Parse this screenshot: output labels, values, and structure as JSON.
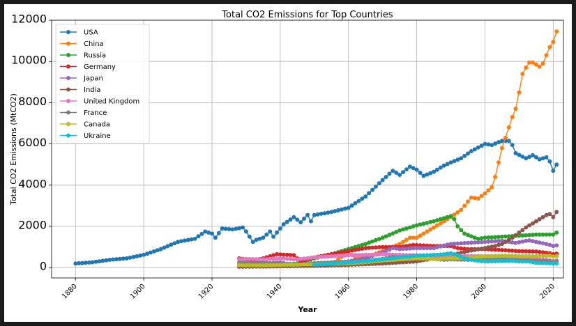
{
  "chart_data": {
    "type": "line",
    "title": "Total CO2 Emissions for Top Countries",
    "xlabel": "Year",
    "ylabel": "Total CO2 Emissions (MtCO2)",
    "xlim": [
      1873,
      2023
    ],
    "ylim": [
      -500,
      12000
    ],
    "xticks": [
      1880,
      1900,
      1920,
      1940,
      1960,
      1980,
      2000,
      2020
    ],
    "yticks": [
      0,
      2000,
      4000,
      6000,
      8000,
      10000,
      12000
    ],
    "grid": true,
    "legend_position": "top-left",
    "series": [
      {
        "name": "USA",
        "color": "#1f77b4",
        "points": [
          [
            1880,
            200
          ],
          [
            1885,
            260
          ],
          [
            1890,
            380
          ],
          [
            1895,
            450
          ],
          [
            1900,
            620
          ],
          [
            1905,
            900
          ],
          [
            1910,
            1250
          ],
          [
            1915,
            1400
          ],
          [
            1918,
            1750
          ],
          [
            1920,
            1650
          ],
          [
            1921,
            1450
          ],
          [
            1923,
            1900
          ],
          [
            1926,
            1850
          ],
          [
            1929,
            1950
          ],
          [
            1930,
            1750
          ],
          [
            1932,
            1250
          ],
          [
            1933,
            1350
          ],
          [
            1935,
            1450
          ],
          [
            1937,
            1750
          ],
          [
            1938,
            1500
          ],
          [
            1941,
            2100
          ],
          [
            1944,
            2450
          ],
          [
            1946,
            2200
          ],
          [
            1948,
            2550
          ],
          [
            1949,
            2250
          ],
          [
            1950,
            2550
          ],
          [
            1955,
            2700
          ],
          [
            1960,
            2900
          ],
          [
            1965,
            3450
          ],
          [
            1970,
            4250
          ],
          [
            1973,
            4700
          ],
          [
            1975,
            4500
          ],
          [
            1978,
            4900
          ],
          [
            1980,
            4750
          ],
          [
            1982,
            4450
          ],
          [
            1985,
            4650
          ],
          [
            1988,
            4950
          ],
          [
            1990,
            5100
          ],
          [
            1993,
            5300
          ],
          [
            1996,
            5650
          ],
          [
            2000,
            6000
          ],
          [
            2002,
            5950
          ],
          [
            2005,
            6150
          ],
          [
            2007,
            6150
          ],
          [
            2008,
            5950
          ],
          [
            2009,
            5550
          ],
          [
            2012,
            5300
          ],
          [
            2014,
            5450
          ],
          [
            2016,
            5250
          ],
          [
            2018,
            5350
          ],
          [
            2019,
            5150
          ],
          [
            2020,
            4700
          ],
          [
            2021,
            5000
          ]
        ]
      },
      {
        "name": "China",
        "color": "#ff7f0e",
        "points": [
          [
            1950,
            80
          ],
          [
            1955,
            150
          ],
          [
            1960,
            780
          ],
          [
            1962,
            450
          ],
          [
            1965,
            500
          ],
          [
            1970,
            800
          ],
          [
            1975,
            1150
          ],
          [
            1978,
            1450
          ],
          [
            1980,
            1450
          ],
          [
            1985,
            1950
          ],
          [
            1990,
            2450
          ],
          [
            1993,
            2800
          ],
          [
            1996,
            3400
          ],
          [
            1998,
            3350
          ],
          [
            2000,
            3600
          ],
          [
            2002,
            3900
          ],
          [
            2003,
            4400
          ],
          [
            2004,
            5100
          ],
          [
            2005,
            5800
          ],
          [
            2006,
            6300
          ],
          [
            2007,
            6800
          ],
          [
            2008,
            7300
          ],
          [
            2009,
            7700
          ],
          [
            2010,
            8500
          ],
          [
            2011,
            9400
          ],
          [
            2012,
            9700
          ],
          [
            2013,
            9950
          ],
          [
            2014,
            9950
          ],
          [
            2015,
            9850
          ],
          [
            2016,
            9750
          ],
          [
            2017,
            9900
          ],
          [
            2018,
            10300
          ],
          [
            2019,
            10700
          ],
          [
            2020,
            10950
          ],
          [
            2021,
            11450
          ]
        ]
      },
      {
        "name": "Russia",
        "color": "#2ca02c",
        "points": [
          [
            1928,
            180
          ],
          [
            1935,
            250
          ],
          [
            1940,
            150
          ],
          [
            1945,
            200
          ],
          [
            1950,
            450
          ],
          [
            1955,
            650
          ],
          [
            1960,
            900
          ],
          [
            1965,
            1150
          ],
          [
            1970,
            1450
          ],
          [
            1975,
            1800
          ],
          [
            1980,
            2050
          ],
          [
            1985,
            2250
          ],
          [
            1988,
            2400
          ],
          [
            1990,
            2500
          ],
          [
            1991,
            2350
          ],
          [
            1992,
            2000
          ],
          [
            1994,
            1650
          ],
          [
            1997,
            1450
          ],
          [
            1998,
            1400
          ],
          [
            2000,
            1450
          ],
          [
            2005,
            1500
          ],
          [
            2010,
            1550
          ],
          [
            2015,
            1600
          ],
          [
            2020,
            1600
          ],
          [
            2021,
            1700
          ]
        ]
      },
      {
        "name": "Germany",
        "color": "#d62728",
        "points": [
          [
            1928,
            450
          ],
          [
            1932,
            350
          ],
          [
            1935,
            450
          ],
          [
            1939,
            650
          ],
          [
            1944,
            600
          ],
          [
            1946,
            300
          ],
          [
            1950,
            500
          ],
          [
            1955,
            650
          ],
          [
            1960,
            800
          ],
          [
            1965,
            950
          ],
          [
            1970,
            1000
          ],
          [
            1975,
            1000
          ],
          [
            1979,
            1100
          ],
          [
            1985,
            1050
          ],
          [
            1990,
            1050
          ],
          [
            1992,
            950
          ],
          [
            1995,
            900
          ],
          [
            2000,
            900
          ],
          [
            2005,
            850
          ],
          [
            2010,
            800
          ],
          [
            2015,
            780
          ],
          [
            2019,
            700
          ],
          [
            2020,
            650
          ],
          [
            2021,
            680
          ]
        ]
      },
      {
        "name": "Japan",
        "color": "#9467bd",
        "points": [
          [
            1928,
            150
          ],
          [
            1935,
            200
          ],
          [
            1940,
            250
          ],
          [
            1945,
            100
          ],
          [
            1950,
            150
          ],
          [
            1955,
            250
          ],
          [
            1960,
            300
          ],
          [
            1965,
            450
          ],
          [
            1970,
            750
          ],
          [
            1973,
            950
          ],
          [
            1975,
            900
          ],
          [
            1980,
            950
          ],
          [
            1985,
            950
          ],
          [
            1990,
            1150
          ],
          [
            1995,
            1200
          ],
          [
            2000,
            1250
          ],
          [
            2005,
            1300
          ],
          [
            2009,
            1200
          ],
          [
            2012,
            1300
          ],
          [
            2013,
            1320
          ],
          [
            2015,
            1250
          ],
          [
            2018,
            1150
          ],
          [
            2020,
            1050
          ],
          [
            2021,
            1080
          ]
        ]
      },
      {
        "name": "India",
        "color": "#8c564b",
        "points": [
          [
            1928,
            40
          ],
          [
            1940,
            60
          ],
          [
            1950,
            90
          ],
          [
            1960,
            130
          ],
          [
            1970,
            200
          ],
          [
            1980,
            300
          ],
          [
            1985,
            450
          ],
          [
            1990,
            600
          ],
          [
            1995,
            800
          ],
          [
            2000,
            950
          ],
          [
            2003,
            1050
          ],
          [
            2005,
            1150
          ],
          [
            2008,
            1450
          ],
          [
            2010,
            1700
          ],
          [
            2012,
            1950
          ],
          [
            2014,
            2150
          ],
          [
            2016,
            2350
          ],
          [
            2018,
            2550
          ],
          [
            2019,
            2600
          ],
          [
            2020,
            2450
          ],
          [
            2021,
            2700
          ]
        ]
      },
      {
        "name": "United Kingdom",
        "color": "#e377c2",
        "points": [
          [
            1928,
            400
          ],
          [
            1930,
            420
          ],
          [
            1935,
            400
          ],
          [
            1940,
            450
          ],
          [
            1945,
            400
          ],
          [
            1950,
            500
          ],
          [
            1955,
            550
          ],
          [
            1960,
            600
          ],
          [
            1965,
            620
          ],
          [
            1970,
            650
          ],
          [
            1975,
            620
          ],
          [
            1980,
            600
          ],
          [
            1985,
            580
          ],
          [
            1990,
            600
          ],
          [
            1995,
            560
          ],
          [
            2000,
            560
          ],
          [
            2005,
            560
          ],
          [
            2008,
            520
          ],
          [
            2010,
            480
          ],
          [
            2013,
            460
          ],
          [
            2015,
            420
          ],
          [
            2018,
            380
          ],
          [
            2020,
            320
          ],
          [
            2021,
            340
          ]
        ]
      },
      {
        "name": "France",
        "color": "#7f7f7f",
        "points": [
          [
            1928,
            250
          ],
          [
            1932,
            220
          ],
          [
            1935,
            230
          ],
          [
            1940,
            200
          ],
          [
            1944,
            100
          ],
          [
            1948,
            200
          ],
          [
            1950,
            220
          ],
          [
            1955,
            250
          ],
          [
            1960,
            280
          ],
          [
            1965,
            330
          ],
          [
            1970,
            420
          ],
          [
            1973,
            520
          ],
          [
            1975,
            480
          ],
          [
            1979,
            530
          ],
          [
            1983,
            450
          ],
          [
            1988,
            380
          ],
          [
            1990,
            400
          ],
          [
            1995,
            380
          ],
          [
            2000,
            400
          ],
          [
            2005,
            410
          ],
          [
            2010,
            370
          ],
          [
            2015,
            330
          ],
          [
            2019,
            310
          ],
          [
            2020,
            270
          ],
          [
            2021,
            300
          ]
        ]
      },
      {
        "name": "Canada",
        "color": "#bcbd22",
        "points": [
          [
            1928,
            120
          ],
          [
            1935,
            110
          ],
          [
            1940,
            130
          ],
          [
            1945,
            150
          ],
          [
            1950,
            160
          ],
          [
            1955,
            190
          ],
          [
            1960,
            200
          ],
          [
            1965,
            260
          ],
          [
            1970,
            340
          ],
          [
            1975,
            400
          ],
          [
            1980,
            450
          ],
          [
            1985,
            420
          ],
          [
            1990,
            450
          ],
          [
            1995,
            480
          ],
          [
            2000,
            550
          ],
          [
            2005,
            580
          ],
          [
            2008,
            570
          ],
          [
            2010,
            550
          ],
          [
            2015,
            560
          ],
          [
            2019,
            580
          ],
          [
            2020,
            540
          ],
          [
            2021,
            560
          ]
        ]
      },
      {
        "name": "Ukraine",
        "color": "#17becf",
        "points": [
          [
            1950,
            150
          ],
          [
            1955,
            200
          ],
          [
            1960,
            250
          ],
          [
            1965,
            320
          ],
          [
            1970,
            400
          ],
          [
            1975,
            500
          ],
          [
            1980,
            580
          ],
          [
            1985,
            620
          ],
          [
            1988,
            650
          ],
          [
            1990,
            700
          ],
          [
            1992,
            600
          ],
          [
            1994,
            450
          ],
          [
            1996,
            380
          ],
          [
            1998,
            330
          ],
          [
            2000,
            300
          ],
          [
            2005,
            320
          ],
          [
            2008,
            330
          ],
          [
            2010,
            300
          ],
          [
            2013,
            290
          ],
          [
            2015,
            230
          ],
          [
            2018,
            220
          ],
          [
            2020,
            200
          ],
          [
            2021,
            210
          ]
        ]
      }
    ]
  }
}
